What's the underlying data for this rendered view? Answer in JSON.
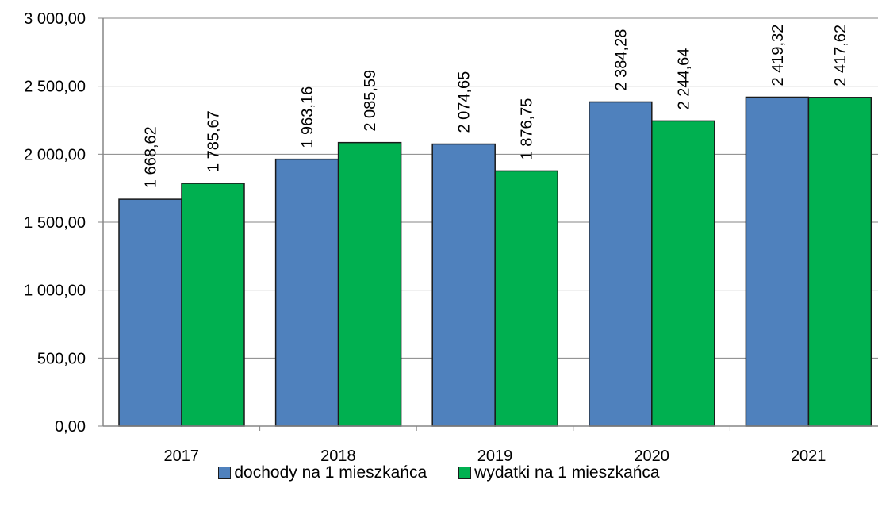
{
  "chart_data": {
    "type": "bar",
    "categories": [
      "2017",
      "2018",
      "2019",
      "2020",
      "2021"
    ],
    "series": [
      {
        "name": "dochody na 1 mieszkańca",
        "color": "#4f81bd",
        "values": [
          1668.62,
          1963.16,
          2074.65,
          2384.28,
          2419.32
        ],
        "labels": [
          "1 668,62",
          "1 963,16",
          "2 074,65",
          "2 384,28",
          "2 419,32"
        ]
      },
      {
        "name": "wydatki na 1 mieszkańca",
        "color": "#00b050",
        "values": [
          1785.67,
          2085.59,
          1876.75,
          2244.64,
          2417.62
        ],
        "labels": [
          "1 785,67",
          "2 085,59",
          "1 876,75",
          "2 244,64",
          "2 417,62"
        ]
      }
    ],
    "ylim": [
      0,
      3000
    ],
    "yticks": [
      0,
      500,
      1000,
      1500,
      2000,
      2500,
      3000
    ],
    "ytick_labels": [
      "0,00",
      "500,00",
      "1 000,00",
      "1 500,00",
      "2 000,00",
      "2 500,00",
      "3 000,00"
    ],
    "grid": true,
    "legend_position": "bottom"
  }
}
